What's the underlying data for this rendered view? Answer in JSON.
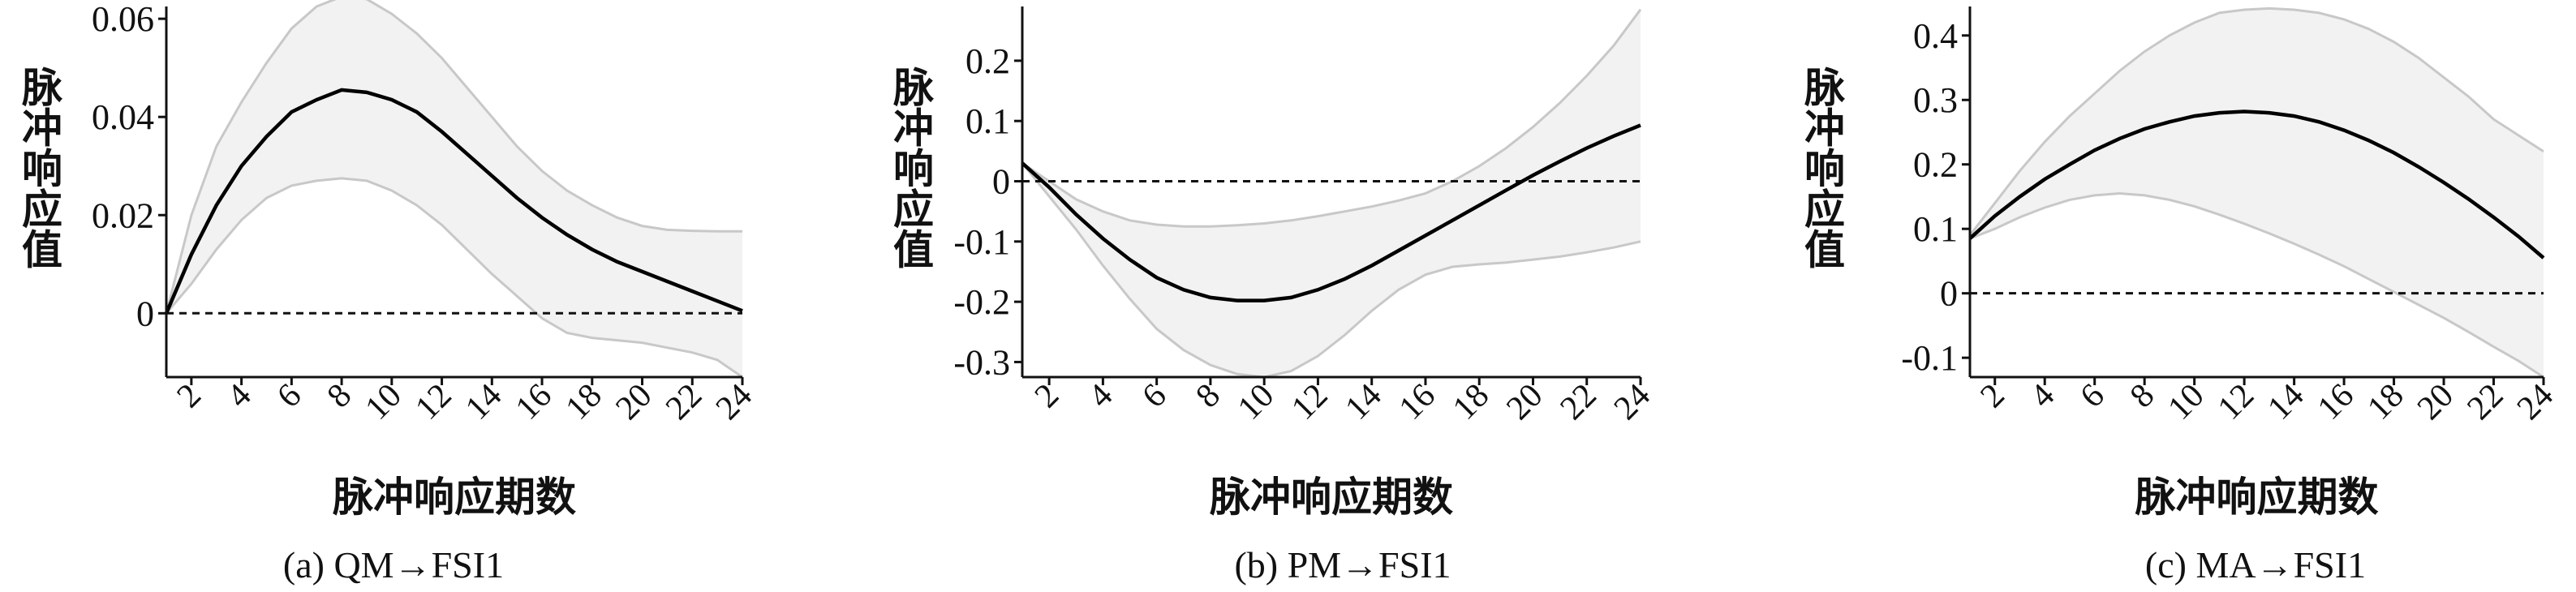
{
  "chart_data": [
    {
      "type": "line",
      "caption": "(a) QM→FSI1",
      "xlabel": "脉冲响应期数",
      "ylabel": "脉冲响应值",
      "xlim": [
        1,
        24
      ],
      "ylim": [
        -0.013,
        0.0625
      ],
      "xticks": [
        2,
        4,
        6,
        8,
        10,
        12,
        14,
        16,
        18,
        20,
        22,
        24
      ],
      "yticks": [
        0,
        0.02,
        0.04,
        0.06
      ],
      "ytick_labels": [
        "0",
        "0.02",
        "0.04",
        "0.06"
      ],
      "zero_line": 0,
      "x": [
        1,
        2,
        3,
        4,
        5,
        6,
        7,
        8,
        9,
        10,
        11,
        12,
        13,
        14,
        15,
        16,
        17,
        18,
        19,
        20,
        21,
        22,
        23,
        24
      ],
      "series": [
        {
          "role": "response",
          "values": [
            0,
            0.012,
            0.022,
            0.03,
            0.036,
            0.041,
            0.0435,
            0.0455,
            0.045,
            0.0435,
            0.041,
            0.037,
            0.0325,
            0.028,
            0.0235,
            0.0195,
            0.016,
            0.013,
            0.0105,
            0.0085,
            0.0065,
            0.0045,
            0.0025,
            0.0005
          ]
        },
        {
          "role": "upper",
          "values": [
            0,
            0.02,
            0.034,
            0.043,
            0.051,
            0.058,
            0.0625,
            0.0645,
            0.064,
            0.061,
            0.057,
            0.052,
            0.046,
            0.04,
            0.034,
            0.029,
            0.025,
            0.022,
            0.0195,
            0.0178,
            0.017,
            0.0168,
            0.0167,
            0.0167
          ]
        },
        {
          "role": "lower",
          "values": [
            0,
            0.006,
            0.013,
            0.019,
            0.0235,
            0.026,
            0.027,
            0.0275,
            0.027,
            0.025,
            0.022,
            0.018,
            0.013,
            0.008,
            0.0035,
            -0.001,
            -0.004,
            -0.005,
            -0.0055,
            -0.006,
            -0.007,
            -0.008,
            -0.0095,
            -0.013
          ]
        }
      ]
    },
    {
      "type": "line",
      "caption": "(b) PM→FSI1",
      "xlabel": "脉冲响应期数",
      "ylabel": "脉冲响应值",
      "xlim": [
        1,
        24
      ],
      "ylim": [
        -0.325,
        0.29
      ],
      "xticks": [
        2,
        4,
        6,
        8,
        10,
        12,
        14,
        16,
        18,
        20,
        22,
        24
      ],
      "yticks": [
        -0.3,
        -0.2,
        -0.1,
        0,
        0.1,
        0.2
      ],
      "ytick_labels": [
        "-0.3",
        "-0.2",
        "-0.1",
        "0",
        "0.1",
        "0.2"
      ],
      "zero_line": 0,
      "x": [
        1,
        2,
        3,
        4,
        5,
        6,
        7,
        8,
        9,
        10,
        11,
        12,
        13,
        14,
        15,
        16,
        17,
        18,
        19,
        20,
        21,
        22,
        23,
        24
      ],
      "series": [
        {
          "role": "response",
          "values": [
            0.03,
            -0.01,
            -0.055,
            -0.095,
            -0.13,
            -0.16,
            -0.18,
            -0.193,
            -0.198,
            -0.198,
            -0.193,
            -0.18,
            -0.162,
            -0.14,
            -0.115,
            -0.09,
            -0.065,
            -0.04,
            -0.015,
            0.01,
            0.033,
            0.055,
            0.075,
            0.093
          ]
        },
        {
          "role": "upper",
          "values": [
            0.03,
            0.0,
            -0.03,
            -0.05,
            -0.065,
            -0.072,
            -0.075,
            -0.075,
            -0.073,
            -0.07,
            -0.065,
            -0.058,
            -0.05,
            -0.042,
            -0.032,
            -0.02,
            0.0,
            0.025,
            0.055,
            0.09,
            0.13,
            0.175,
            0.225,
            0.285
          ]
        },
        {
          "role": "lower",
          "values": [
            0.03,
            -0.025,
            -0.08,
            -0.14,
            -0.195,
            -0.245,
            -0.28,
            -0.305,
            -0.32,
            -0.325,
            -0.315,
            -0.29,
            -0.255,
            -0.215,
            -0.18,
            -0.155,
            -0.142,
            -0.138,
            -0.135,
            -0.13,
            -0.125,
            -0.118,
            -0.11,
            -0.1
          ]
        }
      ]
    },
    {
      "type": "line",
      "caption": "(c) MA→FSI1",
      "xlabel": "脉冲响应期数",
      "ylabel": "脉冲响应值",
      "xlim": [
        1,
        24
      ],
      "ylim": [
        -0.13,
        0.445
      ],
      "xticks": [
        2,
        4,
        6,
        8,
        10,
        12,
        14,
        16,
        18,
        20,
        22,
        24
      ],
      "yticks": [
        -0.1,
        0,
        0.1,
        0.2,
        0.3,
        0.4
      ],
      "ytick_labels": [
        "-0.1",
        "0",
        "0.1",
        "0.2",
        "0.3",
        "0.4"
      ],
      "zero_line": 0,
      "x": [
        1,
        2,
        3,
        4,
        5,
        6,
        7,
        8,
        9,
        10,
        11,
        12,
        13,
        14,
        15,
        16,
        17,
        18,
        19,
        20,
        21,
        22,
        23,
        24
      ],
      "series": [
        {
          "role": "response",
          "values": [
            0.085,
            0.12,
            0.15,
            0.177,
            0.2,
            0.222,
            0.24,
            0.255,
            0.266,
            0.275,
            0.28,
            0.282,
            0.28,
            0.275,
            0.266,
            0.253,
            0.237,
            0.218,
            0.196,
            0.172,
            0.146,
            0.118,
            0.088,
            0.055
          ]
        },
        {
          "role": "upper",
          "values": [
            0.09,
            0.14,
            0.19,
            0.235,
            0.275,
            0.31,
            0.345,
            0.375,
            0.4,
            0.42,
            0.435,
            0.44,
            0.442,
            0.44,
            0.435,
            0.425,
            0.41,
            0.39,
            0.365,
            0.335,
            0.305,
            0.27,
            0.245,
            0.22
          ]
        },
        {
          "role": "lower",
          "values": [
            0.085,
            0.1,
            0.118,
            0.133,
            0.145,
            0.152,
            0.155,
            0.152,
            0.145,
            0.135,
            0.122,
            0.108,
            0.093,
            0.077,
            0.06,
            0.042,
            0.022,
            0.002,
            -0.018,
            -0.038,
            -0.06,
            -0.083,
            -0.105,
            -0.13
          ]
        }
      ]
    }
  ]
}
